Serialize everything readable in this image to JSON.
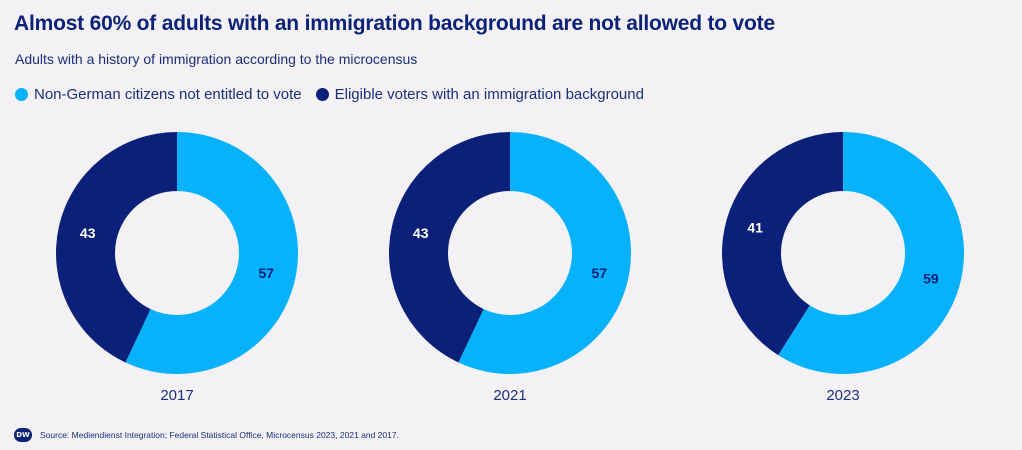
{
  "title": "Almost 60% of adults with an immigration background are not allowed to vote",
  "subtitle": "Adults with a history of immigration according to the microcensus",
  "colors": {
    "non_german": "#08b2fb",
    "eligible": "#0b2078",
    "label_on_light": "#0b2078",
    "label_on_dark": "#ffffff"
  },
  "legend": [
    {
      "label": "Non-German citizens not entitled to vote",
      "color": "#08b2fb"
    },
    {
      "label": "Eligible voters with an immigration background",
      "color": "#0b2078"
    }
  ],
  "chart_data": [
    {
      "type": "pie",
      "donut": true,
      "title": "2017",
      "categories": [
        "Non-German citizens not entitled to vote",
        "Eligible voters with an immigration background"
      ],
      "values": [
        57,
        43
      ]
    },
    {
      "type": "pie",
      "donut": true,
      "title": "2021",
      "categories": [
        "Non-German citizens not entitled to vote",
        "Eligible voters with an immigration background"
      ],
      "values": [
        57,
        43
      ]
    },
    {
      "type": "pie",
      "donut": true,
      "title": "2023",
      "categories": [
        "Non-German citizens not entitled to vote",
        "Eligible voters with an immigration background"
      ],
      "values": [
        59,
        41
      ]
    }
  ],
  "footer": {
    "logo": "DW",
    "source": "Source: Mediendienst Integration; Federal Statistical Office, Microcensus 2023, 2021 and 2017."
  }
}
